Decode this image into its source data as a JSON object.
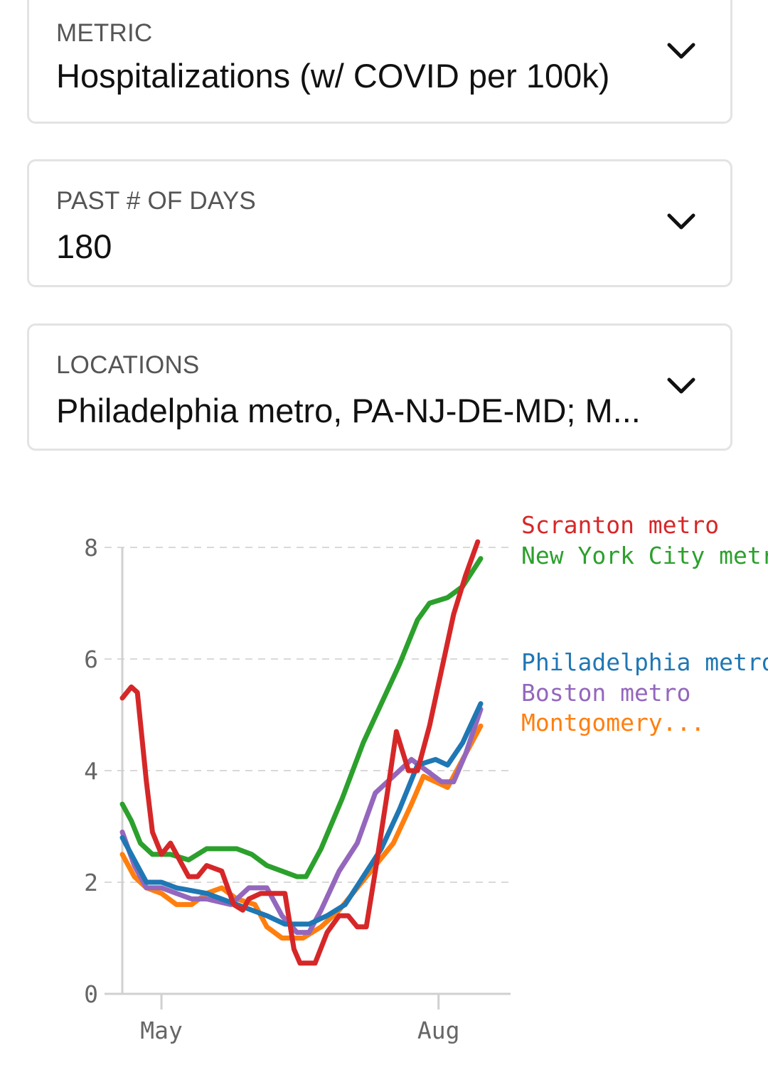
{
  "filters": {
    "metric": {
      "caption": "METRIC",
      "value": "Hospitalizations (w/ COVID per 100k)"
    },
    "days": {
      "caption": "PAST # OF DAYS",
      "value": "180"
    },
    "locations": {
      "caption": "LOCATIONS",
      "value": "Philadelphia metro, PA-NJ-DE-MD; M..."
    }
  },
  "icons": {
    "dropdown": "chevron-down-icon"
  },
  "chart_data": {
    "type": "line",
    "title": "",
    "xlabel": "",
    "ylabel": "",
    "ylim": [
      0,
      8
    ],
    "y_ticks": [
      "0",
      "2",
      "4",
      "6",
      "8"
    ],
    "x_ticks": [
      {
        "label": "May",
        "day": 15
      },
      {
        "label": "Aug",
        "day": 107
      }
    ],
    "x_range_days": [
      2,
      168
    ],
    "grid": "horizontal-dashed",
    "legend": "right-end-labels",
    "series": [
      {
        "name": "Scranton metro",
        "color": "#d62728",
        "points": [
          [
            2,
            5.3
          ],
          [
            5,
            5.5
          ],
          [
            7,
            5.4
          ],
          [
            10,
            3.8
          ],
          [
            12,
            2.9
          ],
          [
            15,
            2.5
          ],
          [
            18,
            2.7
          ],
          [
            21,
            2.4
          ],
          [
            24,
            2.1
          ],
          [
            27,
            2.1
          ],
          [
            30,
            2.3
          ],
          [
            35,
            2.2
          ],
          [
            39,
            1.6
          ],
          [
            42,
            1.5
          ],
          [
            44,
            1.7
          ],
          [
            48,
            1.8
          ],
          [
            52,
            1.8
          ],
          [
            56,
            1.8
          ],
          [
            59,
            0.8
          ],
          [
            61,
            0.55
          ],
          [
            66,
            0.55
          ],
          [
            70,
            1.1
          ],
          [
            74,
            1.4
          ],
          [
            77,
            1.4
          ],
          [
            80,
            1.2
          ],
          [
            83,
            1.2
          ],
          [
            86,
            2.2
          ],
          [
            90,
            3.6
          ],
          [
            93,
            4.7
          ],
          [
            97,
            4.0
          ],
          [
            100,
            4.0
          ],
          [
            104,
            4.8
          ],
          [
            108,
            5.8
          ],
          [
            112,
            6.8
          ],
          [
            116,
            7.5
          ],
          [
            120,
            8.1
          ]
        ]
      },
      {
        "name": "New York City metro",
        "color": "#2ca02c",
        "points": [
          [
            2,
            3.4
          ],
          [
            5,
            3.1
          ],
          [
            8,
            2.7
          ],
          [
            12,
            2.5
          ],
          [
            18,
            2.5
          ],
          [
            24,
            2.4
          ],
          [
            30,
            2.6
          ],
          [
            35,
            2.6
          ],
          [
            40,
            2.6
          ],
          [
            45,
            2.5
          ],
          [
            50,
            2.3
          ],
          [
            55,
            2.2
          ],
          [
            60,
            2.1
          ],
          [
            63,
            2.1
          ],
          [
            68,
            2.6
          ],
          [
            75,
            3.5
          ],
          [
            82,
            4.5
          ],
          [
            88,
            5.2
          ],
          [
            94,
            5.9
          ],
          [
            100,
            6.7
          ],
          [
            104,
            7.0
          ],
          [
            110,
            7.1
          ],
          [
            115,
            7.3
          ],
          [
            121,
            7.8
          ]
        ]
      },
      {
        "name": "Philadelphia metro",
        "color": "#1f77b4",
        "points": [
          [
            2,
            2.8
          ],
          [
            6,
            2.4
          ],
          [
            10,
            2.0
          ],
          [
            15,
            2.0
          ],
          [
            20,
            1.9
          ],
          [
            30,
            1.8
          ],
          [
            40,
            1.6
          ],
          [
            50,
            1.4
          ],
          [
            56,
            1.25
          ],
          [
            64,
            1.25
          ],
          [
            70,
            1.4
          ],
          [
            76,
            1.6
          ],
          [
            82,
            2.1
          ],
          [
            88,
            2.6
          ],
          [
            94,
            3.3
          ],
          [
            100,
            4.1
          ],
          [
            106,
            4.2
          ],
          [
            110,
            4.1
          ],
          [
            115,
            4.5
          ],
          [
            121,
            5.2
          ]
        ]
      },
      {
        "name": "Boston metro",
        "color": "#9467bd",
        "points": [
          [
            2,
            2.9
          ],
          [
            6,
            2.3
          ],
          [
            10,
            1.9
          ],
          [
            15,
            1.9
          ],
          [
            20,
            1.8
          ],
          [
            25,
            1.7
          ],
          [
            30,
            1.7
          ],
          [
            38,
            1.6
          ],
          [
            44,
            1.9
          ],
          [
            50,
            1.9
          ],
          [
            55,
            1.4
          ],
          [
            60,
            1.1
          ],
          [
            64,
            1.1
          ],
          [
            68,
            1.5
          ],
          [
            74,
            2.2
          ],
          [
            80,
            2.7
          ],
          [
            86,
            3.6
          ],
          [
            92,
            3.9
          ],
          [
            98,
            4.2
          ],
          [
            103,
            4.0
          ],
          [
            108,
            3.8
          ],
          [
            112,
            3.8
          ],
          [
            116,
            4.3
          ],
          [
            121,
            5.1
          ]
        ]
      },
      {
        "name": "Montgomery...",
        "color": "#ff7f0e",
        "points": [
          [
            2,
            2.5
          ],
          [
            6,
            2.1
          ],
          [
            10,
            1.9
          ],
          [
            15,
            1.8
          ],
          [
            20,
            1.6
          ],
          [
            25,
            1.6
          ],
          [
            30,
            1.8
          ],
          [
            35,
            1.9
          ],
          [
            40,
            1.7
          ],
          [
            46,
            1.6
          ],
          [
            50,
            1.2
          ],
          [
            55,
            1.0
          ],
          [
            62,
            1.0
          ],
          [
            68,
            1.2
          ],
          [
            74,
            1.5
          ],
          [
            80,
            1.9
          ],
          [
            86,
            2.3
          ],
          [
            92,
            2.7
          ],
          [
            98,
            3.4
          ],
          [
            102,
            3.9
          ],
          [
            106,
            3.8
          ],
          [
            110,
            3.7
          ],
          [
            115,
            4.2
          ],
          [
            121,
            4.8
          ]
        ]
      }
    ]
  }
}
